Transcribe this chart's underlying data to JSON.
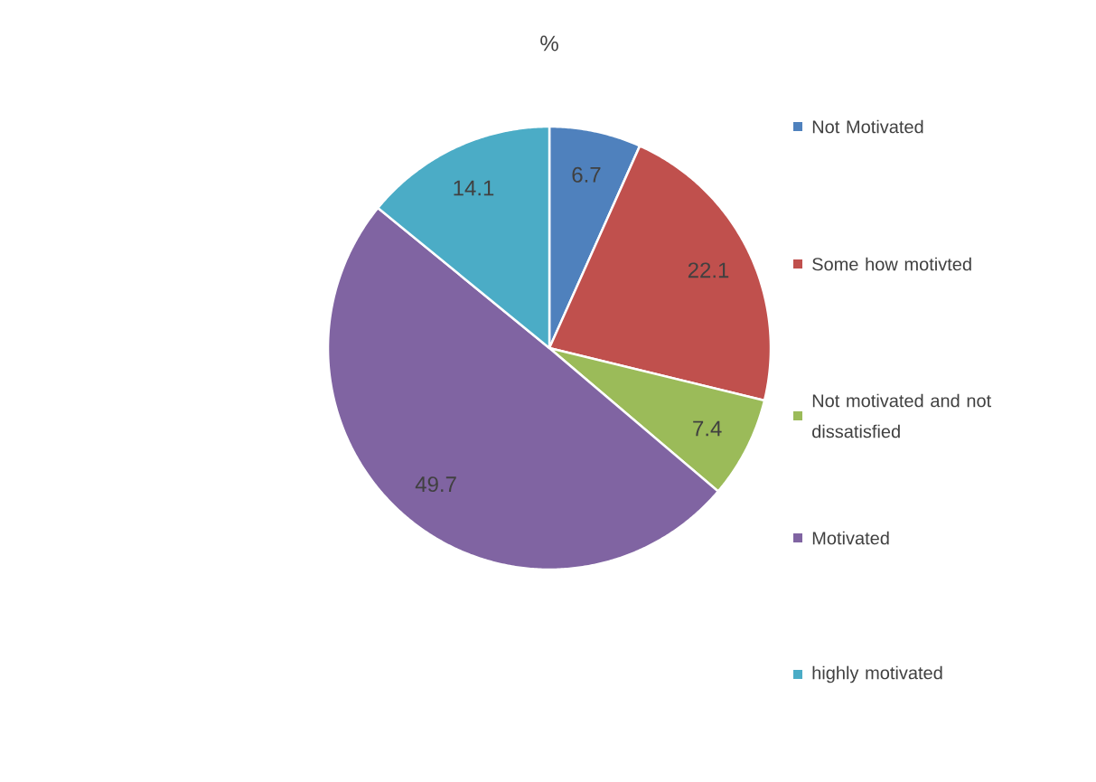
{
  "chart_data": {
    "type": "pie",
    "title": "%",
    "categories": [
      "Not Motivated",
      "Some how motivted",
      "Not motivated and not dissatisfied",
      "Motivated",
      "highly motivated"
    ],
    "values": [
      6.7,
      22.1,
      7.4,
      49.7,
      14.1
    ],
    "colors": [
      "#4f81bd",
      "#c0504d",
      "#9bbb59",
      "#8064a2",
      "#4bacc6"
    ],
    "data_labels": true,
    "legend": "right"
  }
}
